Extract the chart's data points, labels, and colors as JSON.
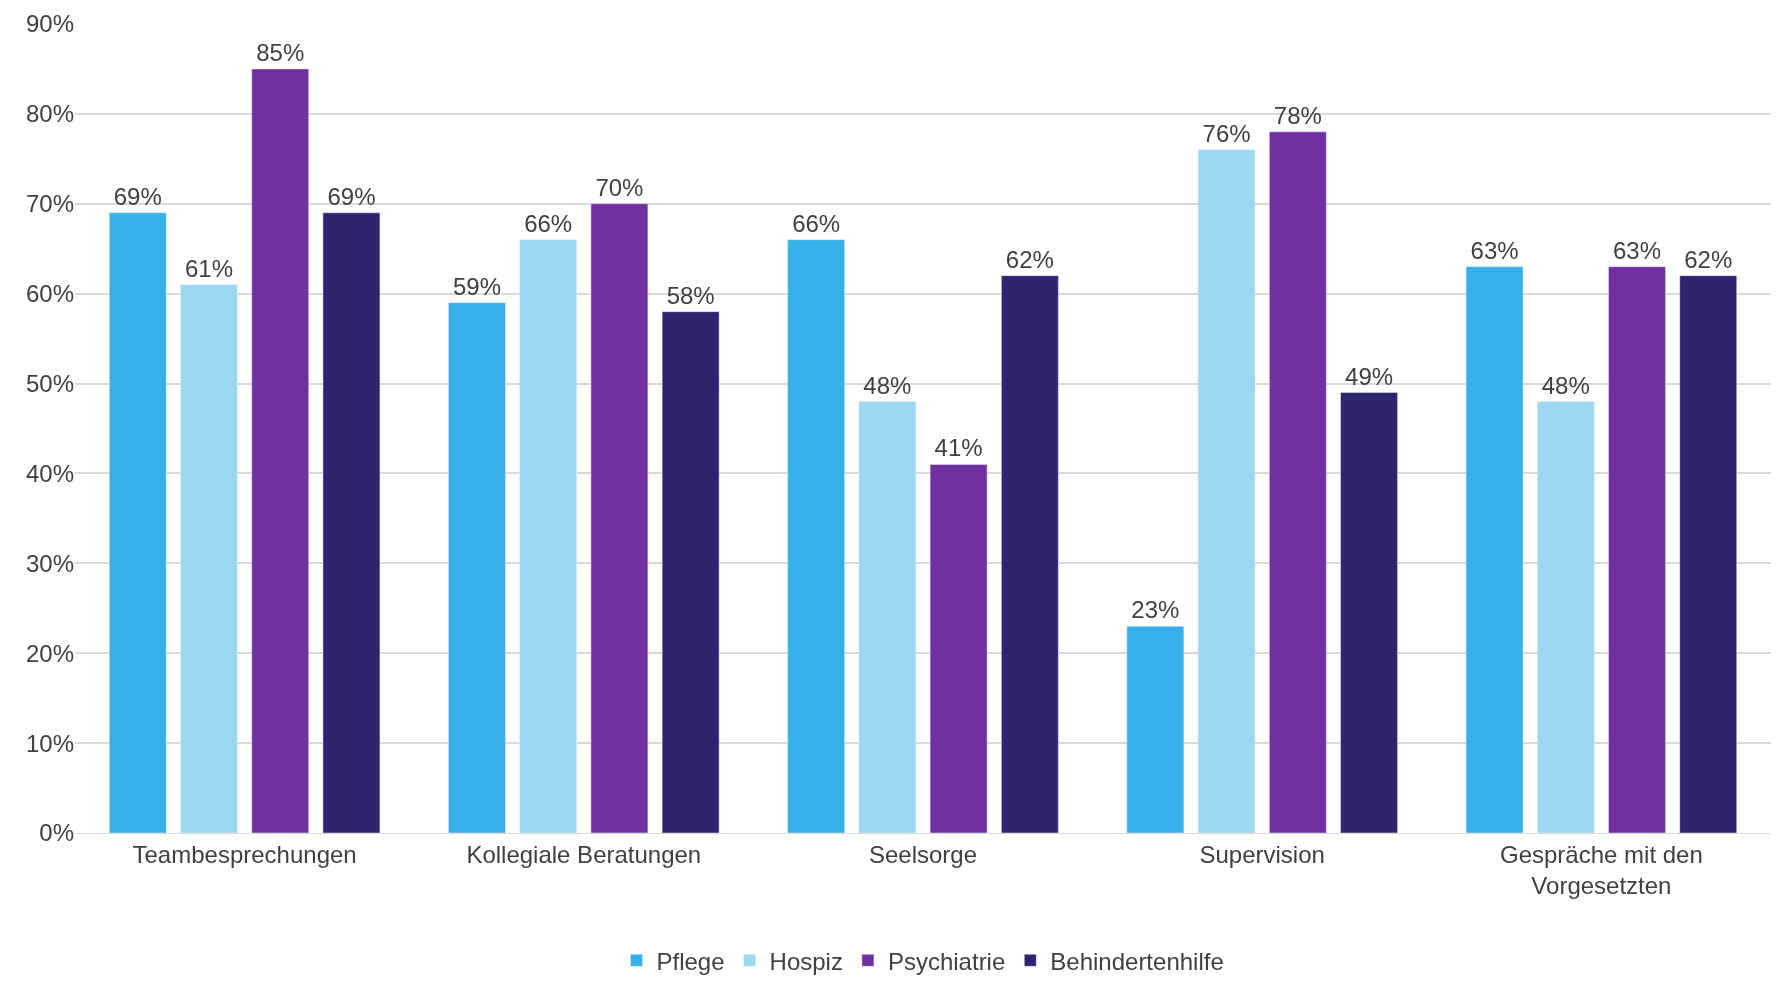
{
  "chart_data": {
    "type": "bar",
    "categories": [
      "Teambesprechungen",
      "Kollegiale Beratungen",
      "Seelsorge",
      "Supervision",
      "Gespräche mit den Vorgesetzten"
    ],
    "series": [
      {
        "name": "Pflege",
        "color": "#35b0e8",
        "values": [
          69,
          59,
          66,
          23,
          63
        ],
        "value_labels": [
          "69%",
          "59%",
          "66%",
          "23%",
          "63%"
        ]
      },
      {
        "name": "Hospiz",
        "color": "#9dd8f3",
        "values": [
          61,
          66,
          48,
          76,
          48
        ],
        "value_labels": [
          "61%",
          "66%",
          "48%",
          "76%",
          "48%"
        ]
      },
      {
        "name": "Psychiatrie",
        "color": "#7030a0",
        "values": [
          85,
          70,
          41,
          78,
          63
        ],
        "value_labels": [
          "85%",
          "70%",
          "41%",
          "78%",
          "63%"
        ]
      },
      {
        "name": "Behindertenhilfe",
        "color": "#2e2470",
        "values": [
          69,
          58,
          62,
          49,
          62
        ],
        "value_labels": [
          "69%",
          "58%",
          "62%",
          "49%",
          "62%"
        ]
      }
    ],
    "ylim": [
      0,
      90
    ],
    "yticks": [
      {
        "value": 0,
        "label": "0%"
      },
      {
        "value": 10,
        "label": "10%"
      },
      {
        "value": 20,
        "label": "20%"
      },
      {
        "value": 30,
        "label": "30%"
      },
      {
        "value": 40,
        "label": "40%"
      },
      {
        "value": 50,
        "label": "50%"
      },
      {
        "value": 60,
        "label": "60%"
      },
      {
        "value": 70,
        "label": "70%"
      },
      {
        "value": 80,
        "label": "80%"
      },
      {
        "value": 90,
        "label": "90%"
      }
    ],
    "grid": "y",
    "legend": "bottom"
  }
}
